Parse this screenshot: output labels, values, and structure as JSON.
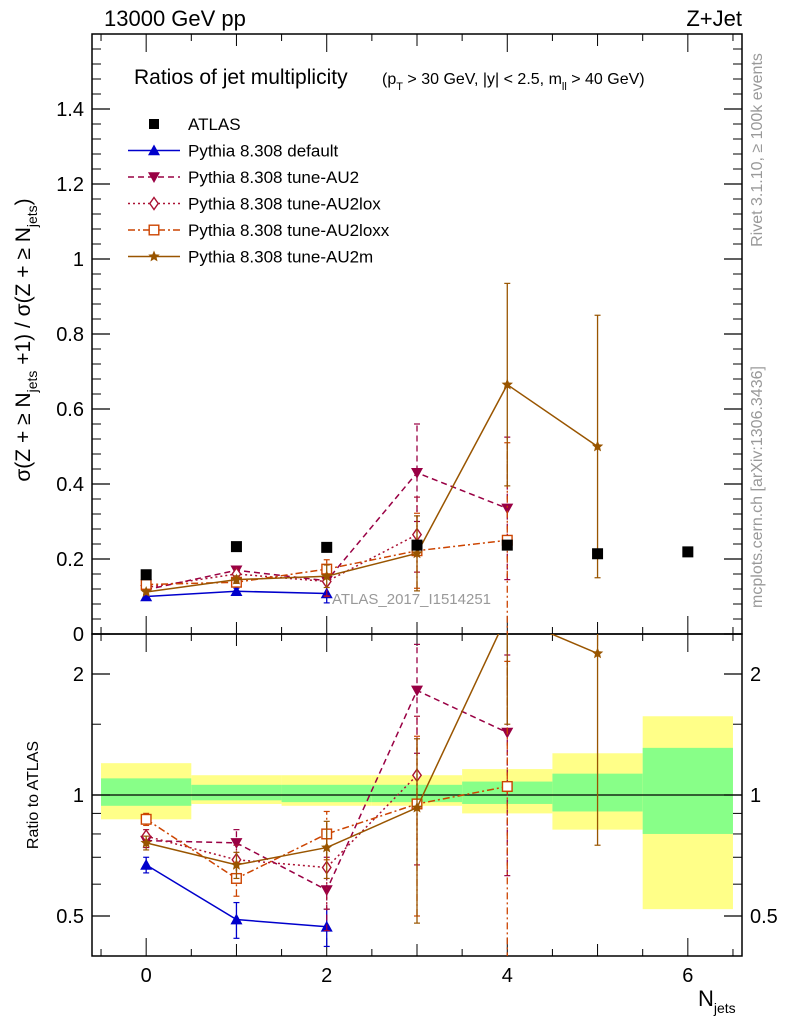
{
  "header": {
    "energy": "13000 GeV pp",
    "process": "Z+Jet"
  },
  "side_labels": {
    "rivet": "Rivet 3.1.10, ≥ 100k events",
    "mcplots": "mcplots.cern.ch [arXiv:1306.3436]"
  },
  "chart_data": {
    "type": "scatter",
    "title": "Ratios of jet multiplicity",
    "title_cuts": "(p_T > 30 GeV, |y| < 2.5, m_ll > 40 GeV)",
    "watermark": "ATLAS_2017_I1514251",
    "xlabel": "N_jets",
    "ylabel": "σ(Z + ≥ N_jets +1) / σ(Z + ≥ N_jets)",
    "ratio_ylabel": "Ratio to ATLAS",
    "xlim": [
      -0.6,
      6.6
    ],
    "ylim": [
      0,
      1.6
    ],
    "ratio_ylim": [
      0.38,
      2.3
    ],
    "x_ticks": [
      "0",
      "2",
      "4",
      "6"
    ],
    "y_ticks": [
      "0",
      "0.2",
      "0.4",
      "0.6",
      "0.8",
      "1",
      "1.2",
      "1.4"
    ],
    "ratio_y_ticks": [
      "0.5",
      "1",
      "2"
    ],
    "legend_position": "top-left",
    "data": {
      "name": "ATLAS",
      "x": [
        0,
        1,
        2,
        3,
        4,
        5,
        6
      ],
      "y": [
        0.158,
        0.233,
        0.231,
        0.237,
        0.237,
        0.214,
        0.219
      ],
      "band_inner": [
        [
          0.94,
          1.1
        ],
        [
          0.97,
          1.06
        ],
        [
          0.96,
          1.06
        ],
        [
          0.96,
          1.06
        ],
        [
          0.95,
          1.08
        ],
        [
          0.91,
          1.13
        ],
        [
          0.8,
          1.31
        ]
      ],
      "band_outer": [
        [
          0.87,
          1.2
        ],
        [
          0.95,
          1.12
        ],
        [
          0.94,
          1.12
        ],
        [
          0.94,
          1.12
        ],
        [
          0.9,
          1.16
        ],
        [
          0.82,
          1.27
        ],
        [
          0.52,
          1.57
        ]
      ]
    },
    "series": [
      {
        "name": "Pythia 8.308 default",
        "color": "#0000cc",
        "marker": "triangle-up",
        "dash": "",
        "x": [
          0,
          1,
          2
        ],
        "y": [
          0.1,
          0.114,
          0.108
        ],
        "err": [
          0.005,
          0.008,
          0.025
        ],
        "ratio": [
          0.67,
          0.49,
          0.47
        ],
        "ratio_err": [
          0.03,
          0.05,
          0.05
        ]
      },
      {
        "name": "Pythia 8.308 tune-AU2",
        "color": "#990044",
        "marker": "triangle-down",
        "dash": "6,4",
        "x": [
          0,
          1,
          2,
          3,
          4
        ],
        "y": [
          0.118,
          0.17,
          0.142,
          0.43,
          0.335
        ],
        "err": [
          0.005,
          0.01,
          0.04,
          0.13,
          0.19
        ],
        "ratio": [
          0.77,
          0.76,
          0.58,
          1.82,
          1.43
        ],
        "ratio_err": [
          0.03,
          0.06,
          0.12,
          0.55,
          0.8
        ]
      },
      {
        "name": "Pythia 8.308 tune-AU2lox",
        "color": "#aa1133",
        "marker": "diamond",
        "dash": "2,3",
        "x": [
          0,
          1,
          2,
          3
        ],
        "y": [
          0.124,
          0.16,
          0.14,
          0.265
        ],
        "err": [
          0.005,
          0.01,
          0.04,
          0.1
        ],
        "ratio": [
          0.79,
          0.69,
          0.66,
          1.12
        ],
        "ratio_err": [
          0.03,
          0.06,
          0.14,
          0.45
        ]
      },
      {
        "name": "Pythia 8.308 tune-AU2loxx",
        "color": "#cc4400",
        "marker": "square-open",
        "dash": "7,3,2,3",
        "x": [
          0,
          1,
          2,
          3,
          4
        ],
        "y": [
          0.132,
          0.138,
          0.173,
          0.222,
          0.25
        ],
        "err": [
          0.005,
          0.01,
          0.025,
          0.1,
          0.26
        ],
        "ratio": [
          0.87,
          0.62,
          0.8,
          0.95,
          1.05
        ],
        "ratio_err": [
          0.03,
          0.06,
          0.11,
          0.45,
          1.1
        ]
      },
      {
        "name": "Pythia 8.308 tune-AU2m",
        "color": "#995500",
        "marker": "star",
        "dash": "",
        "x": [
          0,
          1,
          2,
          3,
          4,
          5
        ],
        "y": [
          0.112,
          0.145,
          0.154,
          0.215,
          0.665,
          0.5
        ],
        "err": [
          0.005,
          0.01,
          0.03,
          0.1,
          0.27,
          0.35
        ],
        "ratio": [
          0.76,
          0.67,
          0.74,
          0.93,
          2.8,
          2.25
        ],
        "ratio_err": [
          0.03,
          0.05,
          0.12,
          0.45,
          1.3,
          1.5
        ]
      }
    ]
  }
}
